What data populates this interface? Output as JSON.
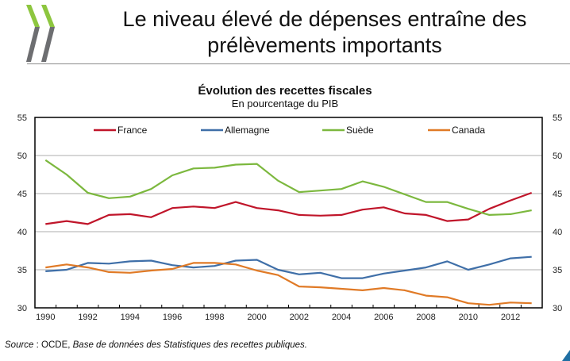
{
  "slide": {
    "title_line1": "Le niveau élevé de dépenses entraîne des",
    "title_line2": "prélèvements importants",
    "logo_icon": "oecd-chevrons-icon",
    "colors": {
      "logo_green": "#8dc63f",
      "logo_gray": "#6d6e71"
    }
  },
  "source": {
    "prefix": "Source",
    "separator": " : OCDE, ",
    "publication": "Base de données des Statistiques des recettes publiques."
  },
  "chart_data": {
    "type": "line",
    "title": "Évolution des recettes fiscales",
    "subtitle": "En pourcentage du PIB",
    "xlabel": "",
    "ylabel": "",
    "ylim": [
      30,
      55
    ],
    "yticks": [
      30,
      35,
      40,
      45,
      50,
      55
    ],
    "ytick_labels": [
      "30",
      "35",
      "40",
      "45",
      "50",
      "55"
    ],
    "y_axis_sides": [
      "left",
      "right"
    ],
    "xtick_labels": [
      "1990",
      "1992",
      "1994",
      "1996",
      "1998",
      "2000",
      "2002",
      "2004",
      "2006",
      "2008",
      "2010",
      "2012"
    ],
    "grid": "horizontal",
    "legend_placement": "top",
    "x": [
      1990,
      1991,
      1992,
      1993,
      1994,
      1995,
      1996,
      1997,
      1998,
      1999,
      2000,
      2001,
      2002,
      2003,
      2004,
      2005,
      2006,
      2007,
      2008,
      2009,
      2010,
      2011,
      2012,
      2013
    ],
    "series": [
      {
        "name": "France",
        "color": "#c0152a",
        "values": [
          41.0,
          41.4,
          41.0,
          42.2,
          42.3,
          41.9,
          43.1,
          43.3,
          43.1,
          43.9,
          43.1,
          42.8,
          42.2,
          42.1,
          42.2,
          42.9,
          43.2,
          42.4,
          42.2,
          41.4,
          41.6,
          43.0,
          44.1,
          45.1
        ]
      },
      {
        "name": "Allemagne",
        "color": "#3f6fa8",
        "values": [
          34.8,
          35.0,
          35.9,
          35.8,
          36.1,
          36.2,
          35.6,
          35.3,
          35.5,
          36.2,
          36.3,
          35.0,
          34.4,
          34.6,
          33.9,
          33.9,
          34.5,
          34.9,
          35.3,
          36.1,
          35.0,
          35.7,
          36.5,
          36.7
        ]
      },
      {
        "name": "Suède",
        "color": "#7cb83e",
        "values": [
          49.4,
          47.5,
          45.1,
          44.4,
          44.6,
          45.6,
          47.4,
          48.3,
          48.4,
          48.8,
          48.9,
          46.7,
          45.2,
          45.4,
          45.6,
          46.6,
          45.9,
          44.9,
          43.9,
          43.9,
          43.0,
          42.2,
          42.3,
          42.8
        ]
      },
      {
        "name": "Canada",
        "color": "#e07a26",
        "values": [
          35.3,
          35.7,
          35.3,
          34.7,
          34.6,
          34.9,
          35.1,
          35.9,
          35.9,
          35.7,
          34.9,
          34.3,
          32.8,
          32.7,
          32.5,
          32.3,
          32.6,
          32.3,
          31.6,
          31.4,
          30.6,
          30.4,
          30.7,
          30.6
        ]
      }
    ]
  }
}
